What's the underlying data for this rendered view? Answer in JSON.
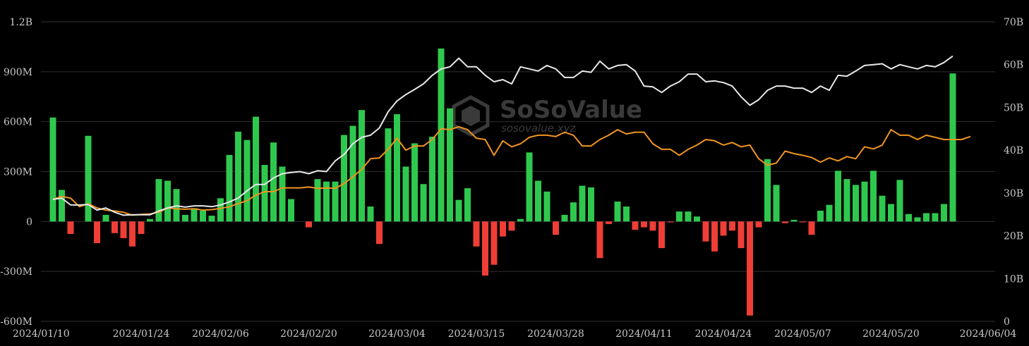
{
  "watermark": {
    "name": "SoSoValue",
    "url": "sosovalue.xyz",
    "logo_icon": "sosovalue-logo-icon"
  },
  "colors": {
    "background": "#000000",
    "grid": "#2f2f2f",
    "inflow_bar": "#2fc84e",
    "outflow_bar": "#ef3e36",
    "total_net_assets_line": "#e8e8e8",
    "cumulative_inflow_line": "#ef9420",
    "tick_text": "#c8c8c8"
  },
  "chart_data": {
    "type": "bar",
    "left_axis": {
      "ylim": [
        -600000000,
        1200000000
      ],
      "ticks": [
        -600000000,
        -300000000,
        0,
        300000000,
        600000000,
        900000000,
        1200000000
      ],
      "tick_labels": [
        "-600M",
        "-300M",
        "0",
        "300M",
        "600M",
        "900M",
        "1.2B"
      ]
    },
    "right_axis": {
      "ylim": [
        0,
        70000000000
      ],
      "ticks": [
        0,
        10000000000,
        20000000000,
        30000000000,
        40000000000,
        50000000000,
        60000000000,
        70000000000
      ],
      "tick_labels": [
        "0",
        "10B",
        "20B",
        "30B",
        "40B",
        "50B",
        "60B",
        "70B"
      ]
    },
    "x_tick_labels": [
      {
        "index": 0,
        "label": "2024/01/10"
      },
      {
        "index": 10,
        "label": "2024/01/24"
      },
      {
        "index": 19,
        "label": "2024/02/06"
      },
      {
        "index": 29,
        "label": "2024/02/20"
      },
      {
        "index": 39,
        "label": "2024/03/04"
      },
      {
        "index": 48,
        "label": "2024/03/15"
      },
      {
        "index": 57,
        "label": "2024/03/28"
      },
      {
        "index": 67,
        "label": "2024/04/11"
      },
      {
        "index": 76,
        "label": "2024/04/24"
      },
      {
        "index": 85,
        "label": "2024/05/07"
      },
      {
        "index": 95,
        "label": "2024/05/20"
      },
      {
        "index": 106,
        "label": "2024/06/04"
      }
    ],
    "daily_net_inflow": [
      625,
      190,
      -75,
      0,
      515,
      -130,
      40,
      -70,
      -100,
      -150,
      -75,
      15,
      255,
      245,
      195,
      40,
      80,
      65,
      35,
      140,
      400,
      540,
      490,
      630,
      340,
      475,
      330,
      135,
      0,
      -35,
      255,
      240,
      240,
      520,
      575,
      670,
      90,
      -135,
      560,
      645,
      330,
      470,
      225,
      510,
      1040,
      680,
      130,
      200,
      -150,
      -325,
      -260,
      -90,
      -55,
      15,
      415,
      245,
      180,
      -80,
      40,
      115,
      215,
      205,
      -220,
      -15,
      120,
      90,
      -50,
      -35,
      -55,
      -160,
      -5,
      60,
      60,
      30,
      -120,
      -180,
      -85,
      -55,
      -160,
      -565,
      -35,
      375,
      220,
      -10,
      10,
      -5,
      -80,
      65,
      100,
      305,
      255,
      220,
      240,
      305,
      155,
      105,
      250,
      45,
      25,
      50,
      50,
      105,
      890
    ],
    "total_net_assets": [
      28.5,
      28.8,
      27.2,
      27.2,
      27.3,
      26.0,
      26.5,
      25.5,
      24.8,
      24.9,
      24.9,
      24.9,
      25.8,
      26.5,
      27.0,
      26.7,
      27.0,
      27.0,
      26.8,
      27.2,
      27.9,
      28.8,
      30.5,
      32.0,
      32.0,
      33.5,
      34.5,
      34.8,
      35.0,
      34.5,
      35.2,
      35.0,
      37.5,
      39.0,
      41.5,
      43.0,
      43.5,
      45.2,
      49.0,
      51.5,
      53.0,
      54.2,
      55.5,
      57.5,
      59.0,
      59.5,
      61.5,
      59.5,
      59.5,
      57.5,
      56.0,
      56.5,
      55.5,
      59.5,
      59.0,
      58.5,
      59.8,
      59.0,
      57.0,
      57.0,
      58.5,
      58.2,
      60.8,
      59.0,
      59.8,
      60.0,
      58.5,
      55.0,
      54.8,
      53.5,
      55.0,
      56.0,
      57.8,
      57.8,
      56.0,
      56.2,
      55.8,
      55.0,
      52.5,
      50.5,
      51.8,
      54.0,
      55.0,
      55.0,
      54.5,
      54.5,
      53.5,
      55.0,
      54.0,
      57.5,
      57.3,
      58.5,
      59.8,
      60.0,
      60.2,
      59.0,
      60.0,
      59.5,
      59.0,
      59.8,
      59.5,
      60.5,
      62.0
    ],
    "cumulative_net_inflow": [
      28.5,
      29.2,
      28.8,
      26.8,
      27.5,
      26.5,
      26.0,
      25.8,
      25.5,
      24.8,
      25.0,
      25.1,
      25.5,
      26.5,
      26.3,
      26.2,
      26.3,
      26.0,
      26.1,
      26.4,
      26.8,
      27.5,
      28.2,
      29.5,
      30.3,
      30.3,
      31.2,
      31.2,
      31.2,
      31.4,
      31.1,
      31.2,
      31.1,
      32.2,
      33.8,
      35.5,
      38.0,
      38.2,
      40.2,
      42.8,
      40.0,
      41.0,
      41.0,
      42.5,
      45.0,
      44.8,
      45.5,
      44.8,
      42.8,
      42.5,
      38.8,
      42.2,
      40.8,
      41.5,
      43.0,
      43.5,
      43.5,
      43.2,
      44.2,
      43.5,
      41.0,
      41.0,
      42.5,
      43.5,
      44.8,
      43.8,
      44.2,
      44.2,
      41.5,
      40.2,
      40.2,
      38.8,
      40.2,
      41.2,
      42.5,
      42.2,
      41.2,
      41.8,
      40.8,
      41.2,
      38.0,
      36.5,
      37.0,
      39.8,
      39.2,
      38.8,
      38.3,
      37.2,
      38.2,
      37.5,
      38.5,
      38.0,
      40.8,
      40.3,
      41.2,
      44.8,
      43.5,
      43.5,
      42.5,
      43.5,
      43.0,
      42.5,
      42.5,
      42.5,
      43.2
    ]
  }
}
